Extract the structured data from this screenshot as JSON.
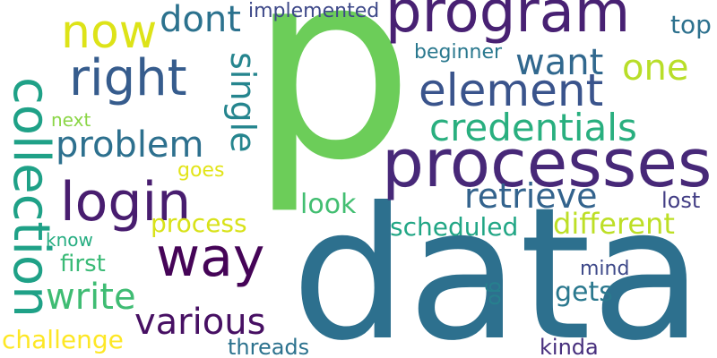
{
  "words": [
    {
      "text": "p",
      "color": "#6ccd59"
    },
    {
      "text": "data",
      "color": "#2d708e"
    },
    {
      "text": "processes",
      "color": "#472878"
    },
    {
      "text": "program",
      "color": "#482173"
    },
    {
      "text": "element",
      "color": "#3a548c"
    },
    {
      "text": "login",
      "color": "#481d6f"
    },
    {
      "text": "right",
      "color": "#365c8d"
    },
    {
      "text": "collection",
      "color": "#1fa187"
    },
    {
      "text": "way",
      "color": "#450457"
    },
    {
      "text": "now",
      "color": "#dde318"
    },
    {
      "text": "credentials",
      "color": "#29af7f"
    },
    {
      "text": "problem",
      "color": "#2d708e"
    },
    {
      "text": "various",
      "color": "#471063"
    },
    {
      "text": "retrieve",
      "color": "#33638d"
    },
    {
      "text": "dont",
      "color": "#2c728e"
    },
    {
      "text": "write",
      "color": "#3fbc73"
    },
    {
      "text": "single",
      "color": "#25858e"
    },
    {
      "text": "want",
      "color": "#31688e"
    },
    {
      "text": "different",
      "color": "#bddf26"
    },
    {
      "text": "one",
      "color": "#b8de29"
    },
    {
      "text": "scheduled",
      "color": "#21a685"
    },
    {
      "text": "process",
      "color": "#d8e219"
    },
    {
      "text": "challenge",
      "color": "#fde725"
    },
    {
      "text": "look",
      "color": "#42be71"
    },
    {
      "text": "gets",
      "color": "#2a788e"
    },
    {
      "text": "first",
      "color": "#3aba76"
    },
    {
      "text": "implemented",
      "color": "#3e4989"
    },
    {
      "text": "beginner",
      "color": "#2a788e"
    },
    {
      "text": "top",
      "color": "#2d718e"
    },
    {
      "text": "lost",
      "color": "#433e85"
    },
    {
      "text": "threads",
      "color": "#2c728e"
    },
    {
      "text": "kinda",
      "color": "#472f7d"
    },
    {
      "text": "mind",
      "color": "#3e4989"
    },
    {
      "text": "goes",
      "color": "#e2e418"
    },
    {
      "text": "next",
      "color": "#8bd646"
    },
    {
      "text": "know",
      "color": "#26ad81"
    },
    {
      "text": "go",
      "color": "#27808e"
    }
  ]
}
